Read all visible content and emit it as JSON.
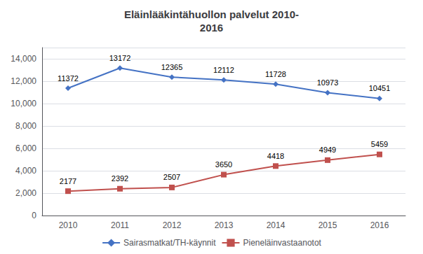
{
  "chart_data": {
    "type": "line",
    "title": "Eläinlääkintähuollon palvelut 2010-\n2016",
    "categories": [
      "2010",
      "2011",
      "2012",
      "2013",
      "2014",
      "2015",
      "2016"
    ],
    "series": [
      {
        "name": "Sairasmatkat/TH-käynnit",
        "color": "#4472C4",
        "marker": "diamond",
        "values": [
          11372,
          13172,
          12365,
          12112,
          11728,
          10973,
          10451
        ]
      },
      {
        "name": "Pieneläinvastaanotot",
        "color": "#C0504D",
        "marker": "square",
        "values": [
          2177,
          2392,
          2507,
          3650,
          4418,
          4949,
          5459
        ]
      }
    ],
    "ylim": [
      0,
      15000
    ],
    "yticks": [
      0,
      2000,
      4000,
      6000,
      8000,
      10000,
      12000,
      14000
    ],
    "grid": true,
    "legend": "bottom",
    "data_labels": true
  }
}
